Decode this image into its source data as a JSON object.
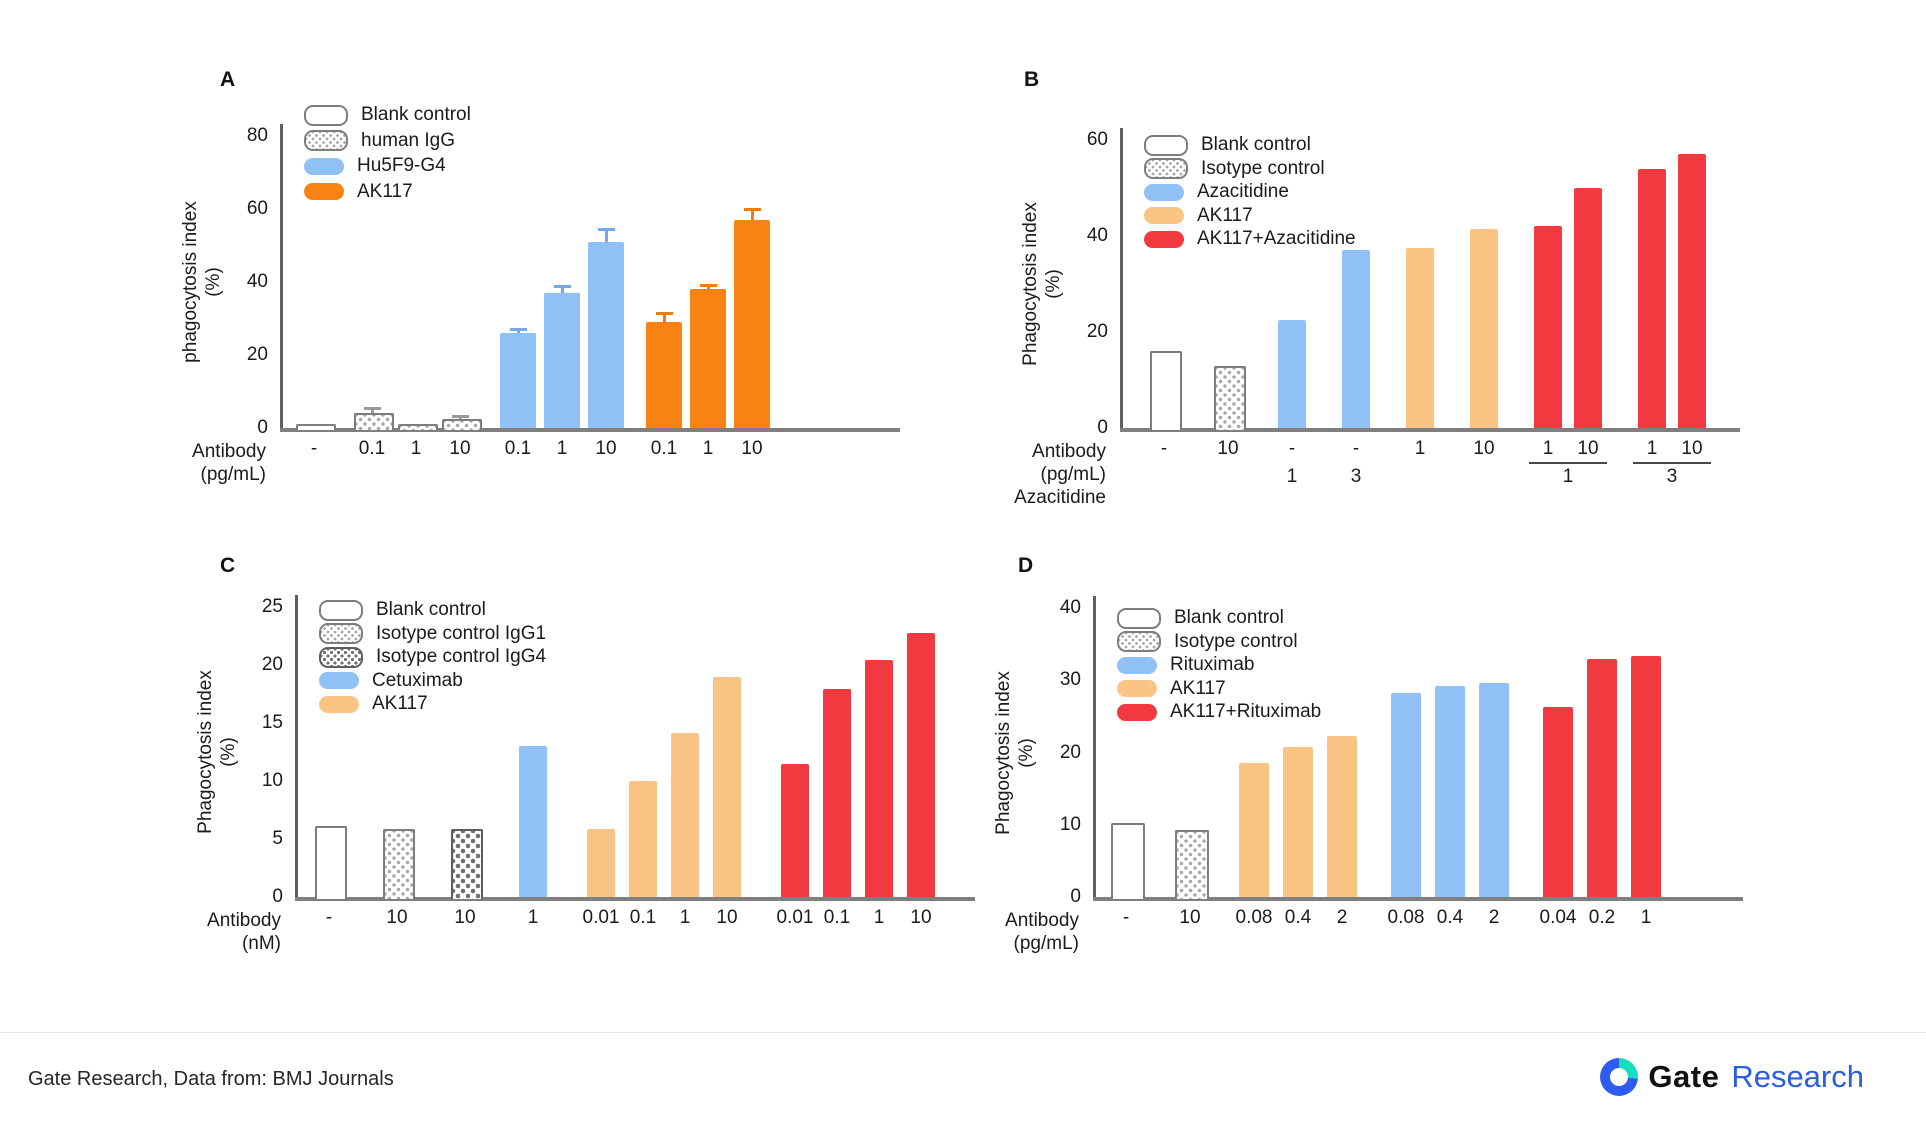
{
  "page": {
    "footer": {
      "text": "Gate Research, Data from: BMJ Journals"
    },
    "brand": {
      "name": "Gate",
      "suffix": "Research"
    }
  },
  "colors": {
    "blue": "#8fc1f7",
    "orange": "#f98312",
    "peach": "#fac584",
    "red": "#f1393f",
    "err_blue": "#74a9e9",
    "err_orange": "#ef7d0d",
    "err_gray": "#9a9a9a",
    "axis": "#5f5f5f",
    "brand_accent": "#2b5ce6"
  },
  "chart_data": [
    {
      "panel": "A",
      "type": "bar",
      "ylabel": [
        "phagocytosis index",
        "(%)"
      ],
      "xlabel": [
        "Antibody",
        "(pg/mL)"
      ],
      "ylim": [
        0,
        80
      ],
      "yticks": [
        0,
        20,
        40,
        60,
        80
      ],
      "legend": [
        {
          "label": "Blank control",
          "style": "blank"
        },
        {
          "label": "human IgG",
          "style": "hatch"
        },
        {
          "label": "Hu5F9-G4",
          "style": "blue"
        },
        {
          "label": "AK117",
          "style": "orange"
        }
      ],
      "bars": [
        {
          "x": "-",
          "v": 1.0,
          "s": "blank"
        },
        {
          "x": "0.1",
          "v": 4.0,
          "s": "hatch",
          "err": 1.2
        },
        {
          "x": "1",
          "v": 1.2,
          "s": "hatch"
        },
        {
          "x": "10",
          "v": 2.5,
          "s": "hatch",
          "err": 0.6
        },
        {
          "x": "0.1",
          "v": 26.0,
          "s": "blue",
          "err": 0.8
        },
        {
          "x": "1",
          "v": 37.0,
          "s": "blue",
          "err": 1.5
        },
        {
          "x": "10",
          "v": 51.0,
          "s": "blue",
          "err": 3.2
        },
        {
          "x": "0.1",
          "v": 29.0,
          "s": "orange",
          "err": 2.3
        },
        {
          "x": "1",
          "v": 38.0,
          "s": "orange",
          "err": 0.8
        },
        {
          "x": "10",
          "v": 57.0,
          "s": "orange",
          "err": 2.6
        }
      ]
    },
    {
      "panel": "B",
      "type": "bar",
      "ylabel": [
        "Phagocytosis index",
        "(%)"
      ],
      "xlabel": [
        "Antibody",
        "(pg/mL)",
        "Azacitidine"
      ],
      "ylim": [
        0,
        60
      ],
      "yticks": [
        0,
        20,
        40,
        60
      ],
      "legend": [
        {
          "label": "Blank control",
          "style": "blank"
        },
        {
          "label": "Isotype control",
          "style": "hatch"
        },
        {
          "label": "Azacitidine",
          "style": "blue"
        },
        {
          "label": "AK117",
          "style": "peach"
        },
        {
          "label": "AK117+Azacitidine",
          "style": "red"
        }
      ],
      "bars": [
        {
          "x": "-",
          "v": 16.0,
          "s": "blank"
        },
        {
          "x": "10",
          "v": 13.0,
          "s": "hatch"
        },
        {
          "x": "-",
          "v": 22.5,
          "s": "blue",
          "x2": "1"
        },
        {
          "x": "-",
          "v": 37.0,
          "s": "blue",
          "x2": "3"
        },
        {
          "x": "1",
          "v": 37.5,
          "s": "peach"
        },
        {
          "x": "10",
          "v": 41.5,
          "s": "peach"
        },
        {
          "x": "1",
          "v": 42.0,
          "s": "red"
        },
        {
          "x": "10",
          "v": 50.0,
          "s": "red"
        },
        {
          "x": "1",
          "v": 54.0,
          "s": "red"
        },
        {
          "x": "10",
          "v": 57.0,
          "s": "red"
        }
      ],
      "pair_groups": [
        {
          "from": 6,
          "to": 7,
          "label": "1"
        },
        {
          "from": 8,
          "to": 9,
          "label": "3"
        }
      ]
    },
    {
      "panel": "C",
      "type": "bar",
      "ylabel": [
        "Phagocytosis index",
        "(%)"
      ],
      "xlabel": [
        "Antibody",
        "(nM)"
      ],
      "ylim": [
        0,
        25
      ],
      "yticks": [
        0,
        5,
        10,
        15,
        20,
        25
      ],
      "legend": [
        {
          "label": "Blank control",
          "style": "blank"
        },
        {
          "label": "Isotype control IgG1",
          "style": "hatch"
        },
        {
          "label": "Isotype control IgG4",
          "style": "hatch2"
        },
        {
          "label": "Cetuximab",
          "style": "blue"
        },
        {
          "label": "AK117",
          "style": "peach"
        }
      ],
      "bars": [
        {
          "x": "-",
          "v": 6.1,
          "s": "blank"
        },
        {
          "x": "10",
          "v": 5.9,
          "s": "hatch"
        },
        {
          "x": "10",
          "v": 5.9,
          "s": "hatch2"
        },
        {
          "x": "1",
          "v": 13.0,
          "s": "blue"
        },
        {
          "x": "0.01",
          "v": 5.9,
          "s": "peach"
        },
        {
          "x": "0.1",
          "v": 10.0,
          "s": "peach"
        },
        {
          "x": "1",
          "v": 14.1,
          "s": "peach"
        },
        {
          "x": "10",
          "v": 19.0,
          "s": "peach"
        },
        {
          "x": "0.01",
          "v": 11.5,
          "s": "red"
        },
        {
          "x": "0.1",
          "v": 17.9,
          "s": "red"
        },
        {
          "x": "1",
          "v": 20.4,
          "s": "red"
        },
        {
          "x": "10",
          "v": 22.8,
          "s": "red"
        }
      ]
    },
    {
      "panel": "D",
      "type": "bar",
      "ylabel": [
        "Phagocytosis index",
        "(%)"
      ],
      "xlabel": [
        "Antibody",
        "(pg/mL)"
      ],
      "ylim": [
        0,
        40
      ],
      "yticks": [
        0,
        10,
        20,
        30,
        40
      ],
      "legend": [
        {
          "label": "Blank control",
          "style": "blank"
        },
        {
          "label": "Isotype control",
          "style": "hatch"
        },
        {
          "label": "Rituximab",
          "style": "blue"
        },
        {
          "label": "AK117",
          "style": "peach"
        },
        {
          "label": "AK117+Rituximab",
          "style": "red"
        }
      ],
      "bars": [
        {
          "x": "-",
          "v": 10.3,
          "s": "blank"
        },
        {
          "x": "10",
          "v": 9.3,
          "s": "hatch"
        },
        {
          "x": "0.08",
          "v": 18.5,
          "s": "peach"
        },
        {
          "x": "0.4",
          "v": 20.7,
          "s": "peach"
        },
        {
          "x": "2",
          "v": 22.3,
          "s": "peach"
        },
        {
          "x": "0.08",
          "v": 28.3,
          "s": "blue"
        },
        {
          "x": "0.4",
          "v": 29.2,
          "s": "blue"
        },
        {
          "x": "2",
          "v": 29.6,
          "s": "blue"
        },
        {
          "x": "0.04",
          "v": 26.3,
          "s": "red"
        },
        {
          "x": "0.2",
          "v": 33.0,
          "s": "red"
        },
        {
          "x": "1",
          "v": 33.4,
          "s": "red"
        }
      ]
    }
  ]
}
